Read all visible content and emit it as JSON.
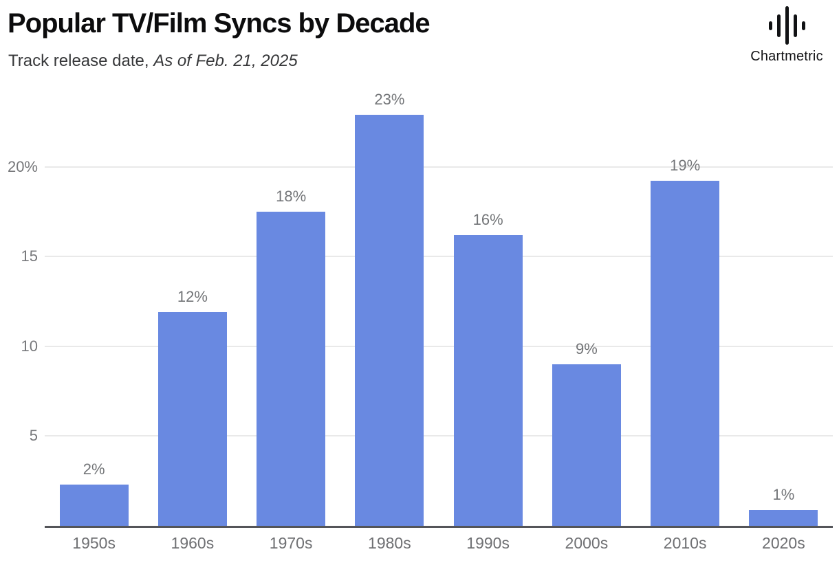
{
  "header": {
    "title": "Popular TV/Film Syncs by Decade",
    "subtitle_regular": "Track release date, ",
    "subtitle_italic": "As of Feb. 21, 2025"
  },
  "brand": {
    "name": "Chartmetric",
    "icon": "waveform-icon"
  },
  "colors": {
    "bar": "#6989E1",
    "gridline": "#E9E9E9",
    "axis_line": "#545559",
    "label_gray": "#737578",
    "title_color": "#0C0C0D"
  },
  "chart_data": {
    "type": "bar",
    "title": "Popular TV/Film Syncs by Decade",
    "subtitle": "Track release date, As of Feb. 21, 2025",
    "categories": [
      "1950s",
      "1960s",
      "1970s",
      "1980s",
      "1990s",
      "2000s",
      "2010s",
      "2020s"
    ],
    "values": [
      2,
      12,
      18,
      23,
      16,
      9,
      19,
      1
    ],
    "value_labels": [
      "2%",
      "12%",
      "18%",
      "23%",
      "16%",
      "9%",
      "19%",
      "1%"
    ],
    "bar_heights_pct": [
      2.3,
      11.9,
      17.5,
      22.9,
      16.2,
      9.0,
      19.2,
      0.9
    ],
    "xlabel": "",
    "ylabel": "",
    "y_ticks": [
      5,
      10,
      15,
      20
    ],
    "y_tick_labels": [
      "5",
      "10",
      "15",
      "20%"
    ],
    "ylim": [
      0,
      24
    ],
    "grid": "horizontal",
    "legend": "none",
    "bar_color": "#6989E1"
  }
}
